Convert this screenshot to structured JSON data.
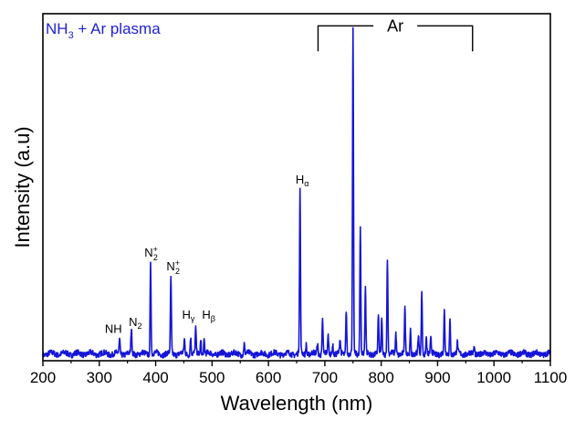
{
  "chart_data": {
    "type": "line",
    "title_parts": [
      "NH",
      "3",
      " + Ar plasma"
    ],
    "title_color": "#1f1fd6",
    "xlabel": "Wavelength (nm)",
    "ylabel": "Intensity (a.u)",
    "xlim": [
      200,
      1100
    ],
    "ylim": [
      0,
      1.0
    ],
    "x_ticks": [
      "200",
      "300",
      "400",
      "500",
      "600",
      "700",
      "800",
      "900",
      "1000",
      "1100"
    ],
    "line_color": "#1515d8",
    "baseline": 0.02,
    "noise": 0.016,
    "series": [
      {
        "peaks": [
          {
            "x": 336,
            "y": 0.06
          },
          {
            "x": 357,
            "y": 0.09
          },
          {
            "x": 391,
            "y": 0.28
          },
          {
            "x": 427,
            "y": 0.24
          },
          {
            "x": 451,
            "y": 0.06
          },
          {
            "x": 462,
            "y": 0.07
          },
          {
            "x": 471,
            "y": 0.09
          },
          {
            "x": 480,
            "y": 0.06
          },
          {
            "x": 486,
            "y": 0.06
          },
          {
            "x": 557,
            "y": 0.05
          },
          {
            "x": 656,
            "y": 0.49
          },
          {
            "x": 667,
            "y": 0.05
          },
          {
            "x": 687,
            "y": 0.05
          },
          {
            "x": 696,
            "y": 0.12
          },
          {
            "x": 706,
            "y": 0.07
          },
          {
            "x": 714,
            "y": 0.05
          },
          {
            "x": 727,
            "y": 0.06
          },
          {
            "x": 738,
            "y": 0.15
          },
          {
            "x": 750,
            "y": 0.95
          },
          {
            "x": 763,
            "y": 0.39
          },
          {
            "x": 772,
            "y": 0.21
          },
          {
            "x": 795,
            "y": 0.13
          },
          {
            "x": 801,
            "y": 0.12
          },
          {
            "x": 811,
            "y": 0.3
          },
          {
            "x": 826,
            "y": 0.08
          },
          {
            "x": 842,
            "y": 0.15
          },
          {
            "x": 852,
            "y": 0.09
          },
          {
            "x": 866,
            "y": 0.07
          },
          {
            "x": 872,
            "y": 0.2
          },
          {
            "x": 880,
            "y": 0.07
          },
          {
            "x": 888,
            "y": 0.06
          },
          {
            "x": 912,
            "y": 0.14
          },
          {
            "x": 922,
            "y": 0.12
          },
          {
            "x": 935,
            "y": 0.05
          },
          {
            "x": 965,
            "y": 0.04
          }
        ]
      }
    ],
    "annotations": [
      {
        "base": "NH",
        "x": 325,
        "y": 0.07
      },
      {
        "base": "N",
        "sub": "2",
        "x": 364,
        "y": 0.09
      },
      {
        "base": "N",
        "sub": "2",
        "sup": "+",
        "x": 392,
        "y": 0.29
      },
      {
        "base": "N",
        "sub": "2",
        "sup": "+",
        "x": 431,
        "y": 0.25
      },
      {
        "base": "H",
        "sub": "γ",
        "x": 458,
        "y": 0.11
      },
      {
        "base": "H",
        "sub": "β",
        "x": 494,
        "y": 0.11
      },
      {
        "base": "H",
        "sub": "α",
        "x": 660,
        "y": 0.5
      }
    ],
    "group_label": {
      "text": "Ar",
      "x_start": 688,
      "x_end": 962,
      "y": 0.965
    }
  }
}
